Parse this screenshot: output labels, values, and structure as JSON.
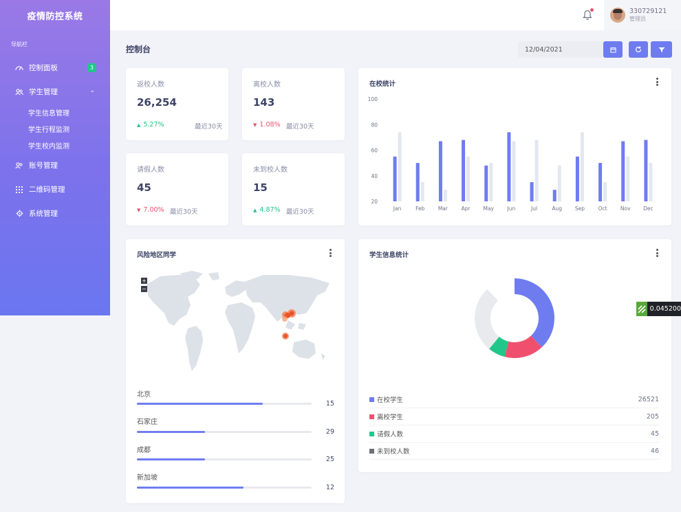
{
  "app": {
    "title": "疫情防控系统"
  },
  "sidebar": {
    "caption": "导航栏",
    "items": [
      {
        "label": "控制面板",
        "icon": "gauge-icon",
        "badge": "3"
      },
      {
        "label": "学生管理",
        "icon": "users-icon",
        "sub": [
          "学生信息管理",
          "学生行程监测",
          "学生校内监测"
        ]
      },
      {
        "label": "账号管理",
        "icon": "account-icon"
      },
      {
        "label": "二维码管理",
        "icon": "grid-icon"
      },
      {
        "label": "系统管理",
        "icon": "gear-icon"
      }
    ]
  },
  "header": {
    "user_id": "330729121",
    "user_role": "管理员"
  },
  "page": {
    "title": "控制台",
    "date": "12/04/2021"
  },
  "stats": [
    {
      "label": "返校人数",
      "value": "26,254",
      "change": "5.27%",
      "direction": "up",
      "period": "最近30天"
    },
    {
      "label": "离校人数",
      "value": "143",
      "change": "1.08%",
      "direction": "down",
      "period": "最近30天"
    },
    {
      "label": "请假人数",
      "value": "45",
      "change": "7.00%",
      "direction": "down",
      "period": "最近30天"
    },
    {
      "label": "未到校人数",
      "value": "15",
      "change": "4.87%",
      "direction": "up",
      "period": "最近30天"
    }
  ],
  "bar_card": {
    "title": "在校统计"
  },
  "chart_data": {
    "type": "bar",
    "categories": [
      "Jan",
      "Feb",
      "Mar",
      "Apr",
      "May",
      "Jun",
      "Jul",
      "Aug",
      "Sep",
      "Oct",
      "Nov",
      "Dec"
    ],
    "series": [
      {
        "color": "#6f7cf0",
        "values": [
          55,
          50,
          67,
          68,
          48,
          74,
          35,
          29,
          55,
          50,
          67,
          68
        ]
      },
      {
        "color": "#e3e7f0",
        "values": [
          74,
          35,
          29,
          55,
          50,
          67,
          68,
          48,
          74,
          35,
          55,
          50
        ]
      }
    ],
    "ylim": [
      20,
      100
    ],
    "yticks": [
      20,
      40,
      60,
      80,
      100
    ]
  },
  "map_card": {
    "title": "风险地区同学",
    "zoom_in": "+",
    "zoom_out": "−",
    "regions": [
      {
        "name": "北京",
        "value": "15",
        "fraction": 0.72
      },
      {
        "name": "石家庄",
        "value": "29",
        "fraction": 0.39
      },
      {
        "name": "成都",
        "value": "25",
        "fraction": 0.39
      },
      {
        "name": "新加坡",
        "value": "12",
        "fraction": 0.61
      }
    ]
  },
  "donut_card": {
    "title": "学生信息统计",
    "legend": [
      {
        "label": "在校学生",
        "value": "26521",
        "color": "#6f7cf0"
      },
      {
        "label": "离校学生",
        "value": "205",
        "color": "#f0506e"
      },
      {
        "label": "请假人数",
        "value": "45",
        "color": "#21c78a"
      },
      {
        "label": "未到校人数",
        "value": "46",
        "color": "#6e7078"
      }
    ],
    "segments": [
      {
        "color": "#6f7cf0",
        "fraction": 0.38
      },
      {
        "color": "#f0506e",
        "fraction": 0.16
      },
      {
        "color": "#21c78a",
        "fraction": 0.07
      },
      {
        "color": "#e8eaee",
        "fraction": 0.27
      }
    ]
  },
  "tooltip": {
    "value": "0.045200"
  }
}
